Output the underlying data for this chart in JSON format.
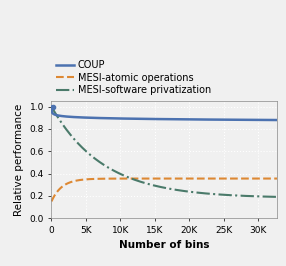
{
  "xlim": [
    0,
    32768
  ],
  "ylim": [
    0.0,
    1.05
  ],
  "xlabel": "Number of bins",
  "ylabel": "Relative performance",
  "yticks": [
    0.0,
    0.2,
    0.4,
    0.6,
    0.8,
    1.0
  ],
  "xticks": [
    0,
    5000,
    10000,
    15000,
    20000,
    25000,
    30000
  ],
  "xticklabels": [
    "0",
    "5K",
    "10K",
    "15K",
    "20K",
    "25K",
    "30K"
  ],
  "coup_color": "#4c72b0",
  "atomic_color": "#dd8833",
  "priv_color": "#4a7a6a",
  "legend_entries": [
    "COUP",
    "MESI-atomic operations",
    "MESI-software privatization"
  ],
  "background_color": "#f0f0f0",
  "grid_color": "#ffffff"
}
